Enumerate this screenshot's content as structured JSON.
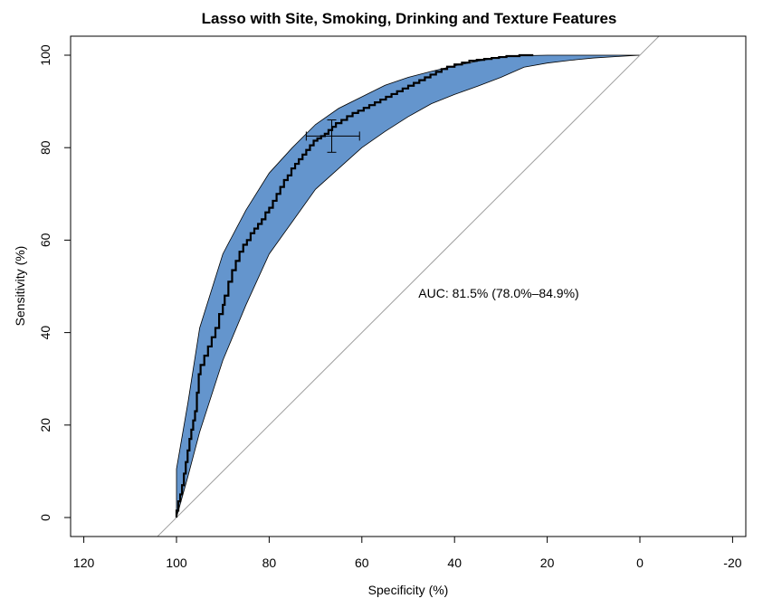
{
  "chart_data": {
    "type": "line",
    "title": "Lasso with Site, Smoking, Drinking and Texture Features",
    "xlabel": "Specificity (%)",
    "ylabel": "Sensitivity (%)",
    "xlim": [
      120,
      -20
    ],
    "ylim": [
      0,
      100
    ],
    "x_ticks": [
      120,
      100,
      80,
      60,
      40,
      20,
      0,
      -20
    ],
    "y_ticks": [
      0,
      20,
      40,
      60,
      80,
      100
    ],
    "grid": false,
    "annotation": "AUC: 81.5% (78.0%–84.9%)",
    "colors": {
      "ci_band": "#6495CD",
      "roc_line": "#000000",
      "diagonal": "#a0a0a0"
    },
    "series": [
      {
        "type": "step",
        "specificity": [
          100,
          100,
          99.6,
          99.6,
          99.2,
          99.2,
          98.8,
          98.8,
          98.4,
          98.4,
          98,
          98,
          97.6,
          97.6,
          97.2,
          97.2,
          96.8,
          96.8,
          96.4,
          96.4,
          96,
          96,
          95.6,
          95.6,
          95.2,
          95.2,
          94.8,
          94.8,
          94,
          94,
          93.2,
          93.2,
          92.4,
          92.4,
          91.6,
          91.6,
          90.8,
          90.8,
          90,
          90,
          89.6,
          89.6,
          88.8,
          88.8,
          88,
          88,
          87.2,
          87.2,
          86.4,
          86.4,
          85.6,
          85.6,
          84.8,
          84.8,
          84,
          84,
          83.2,
          83.2,
          82.4,
          82.4,
          81.6,
          81.6,
          80.8,
          80.8,
          80,
          80,
          79.2,
          79.2,
          78.4,
          78.4,
          77.6,
          77.6,
          76.8,
          76.8,
          76,
          76,
          75.2,
          75.2,
          74.4,
          74.4,
          73.6,
          73.6,
          72.8,
          72.8,
          72,
          72,
          71.2,
          71.2,
          70.4,
          70.4,
          69.6,
          69.6,
          68.8,
          68.8,
          68,
          68,
          67.2,
          67.2,
          66.4,
          66.4,
          65.6,
          65.6,
          64.4,
          64.4,
          63.2,
          63.2,
          62,
          62,
          60.8,
          60.8,
          59.6,
          59.6,
          58.4,
          58.4,
          57.2,
          57.2,
          56,
          56,
          54.8,
          54.8,
          53.6,
          53.6,
          52.4,
          52.4,
          51.2,
          51.2,
          50,
          50,
          48.8,
          48.8,
          47.6,
          47.6,
          46.4,
          46.4,
          45.2,
          45.2,
          44,
          44,
          42.8,
          42.8,
          41.6,
          41.6,
          40,
          40,
          38.4,
          38.4,
          36.8,
          36.8,
          35.2,
          35.2,
          33.6,
          33.6,
          32,
          32,
          30.4,
          30.4,
          28.8,
          28.8,
          26,
          26,
          23,
          23,
          20,
          20,
          17,
          17,
          14,
          14,
          10,
          10,
          6,
          6,
          3,
          3,
          0
        ],
        "sensitivity": [
          0,
          1.5,
          1.5,
          3.5,
          3.5,
          5,
          5,
          7,
          7,
          9.5,
          9.5,
          12,
          12,
          14.5,
          14.5,
          17,
          17,
          19,
          19,
          21,
          21,
          23,
          23,
          27,
          27,
          31,
          31,
          33,
          33,
          35,
          35,
          37,
          37,
          39,
          39,
          41,
          41,
          44,
          44,
          46,
          46,
          48,
          48,
          51,
          51,
          53.5,
          53.5,
          55.5,
          55.5,
          57.5,
          57.5,
          59,
          59,
          60,
          60,
          61.5,
          61.5,
          62.5,
          62.5,
          63.5,
          63.5,
          64.5,
          64.5,
          66,
          66,
          67,
          67,
          68.5,
          68.5,
          70,
          70,
          71.5,
          71.5,
          73,
          73,
          74,
          74,
          75.5,
          75.5,
          76.5,
          76.5,
          77.5,
          77.5,
          78.5,
          78.5,
          79.5,
          79.5,
          80.5,
          80.5,
          81.5,
          81.5,
          82,
          82,
          82.5,
          82.5,
          83,
          83,
          83.8,
          83.8,
          84.5,
          84.5,
          85.3,
          85.3,
          86,
          86,
          86.8,
          86.8,
          87.5,
          87.5,
          88,
          88,
          88.6,
          88.6,
          89.2,
          89.2,
          89.8,
          89.8,
          90.4,
          90.4,
          91,
          91,
          91.6,
          91.6,
          92.2,
          92.2,
          92.8,
          92.8,
          93.4,
          93.4,
          94,
          94,
          94.6,
          94.6,
          95.2,
          95.2,
          95.8,
          95.8,
          96.4,
          96.4,
          97,
          97,
          97.5,
          97.5,
          98,
          98,
          98.4,
          98.4,
          98.8,
          98.8,
          99,
          99,
          99.2,
          99.2,
          99.4,
          99.4,
          99.6,
          99.6,
          99.8,
          99.8,
          100,
          100,
          100
        ]
      }
    ],
    "ci_band": {
      "upper": {
        "specificity": [
          100,
          97.5,
          95,
          90,
          85,
          80,
          75,
          70,
          65,
          60,
          55,
          50,
          45,
          40,
          35,
          30,
          25,
          20,
          15,
          10,
          5,
          0
        ],
        "sensitivity": [
          10.5,
          25,
          41,
          57,
          66.5,
          74.5,
          80,
          85,
          88.5,
          91,
          93.5,
          95.2,
          96.5,
          97.7,
          98.7,
          99.6,
          99.9,
          100,
          100,
          100,
          100,
          100
        ]
      },
      "lower": {
        "specificity": [
          100,
          97.5,
          95,
          90,
          85,
          80,
          75,
          70,
          65,
          60,
          55,
          50,
          45,
          40,
          35,
          30,
          25,
          20,
          15,
          10,
          5,
          0
        ],
        "sensitivity": [
          0,
          9,
          18.5,
          34,
          46,
          57,
          64,
          71,
          75.5,
          80,
          83.5,
          86.7,
          89.5,
          91.5,
          93.3,
          95.2,
          97.4,
          98.3,
          98.9,
          99.4,
          99.7,
          100
        ]
      }
    },
    "cross": {
      "specificity": 66.5,
      "sensitivity": 82.5,
      "specificity_ci": [
        60.5,
        72
      ],
      "sensitivity_ci": [
        79,
        86
      ]
    }
  }
}
